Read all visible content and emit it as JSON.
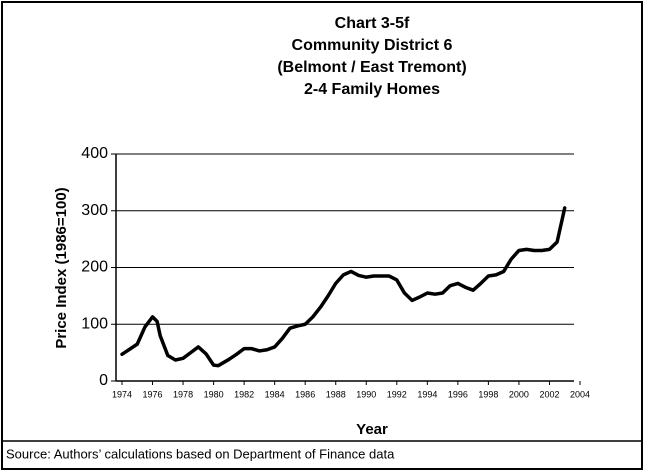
{
  "chart_data": {
    "type": "line",
    "title": [
      "Chart 3-5f",
      "Community District 6",
      "(Belmont / East Tremont)",
      "2-4 Family Homes"
    ],
    "x_label": "Year",
    "y_label": "Price Index (1986=100)",
    "source": "Source: Authors’ calculations based on Department of Finance data",
    "x": [
      1974,
      1975,
      1975.5,
      1976,
      1976.3,
      1976.5,
      1977,
      1977.5,
      1978,
      1978.5,
      1979,
      1979.5,
      1980,
      1980.3,
      1981,
      1981.5,
      1982,
      1982.5,
      1983,
      1983.5,
      1984,
      1984.5,
      1985,
      1985.5,
      1986,
      1986.5,
      1987,
      1987.5,
      1988,
      1988.5,
      1989,
      1989.5,
      1990,
      1990.5,
      1991,
      1991.5,
      1992,
      1992.5,
      1993,
      1993.5,
      1994,
      1994.5,
      1995,
      1995.5,
      1996,
      1996.5,
      1997,
      1997.5,
      1998,
      1998.5,
      1999,
      1999.5,
      2000,
      2000.5,
      2001,
      2001.5,
      2002,
      2002.5,
      2003
    ],
    "series": [
      {
        "name": "Price Index",
        "color": "#000000",
        "values": [
          47,
          65,
          95,
          113,
          105,
          80,
          45,
          37,
          40,
          50,
          60,
          48,
          28,
          27,
          38,
          47,
          57,
          57,
          53,
          55,
          60,
          75,
          93,
          97,
          100,
          113,
          130,
          150,
          172,
          187,
          193,
          186,
          183,
          185,
          185,
          185,
          178,
          155,
          142,
          148,
          155,
          153,
          155,
          168,
          172,
          165,
          160,
          172,
          185,
          187,
          193,
          215,
          230,
          232,
          230,
          230,
          232,
          245,
          305
        ]
      }
    ],
    "xlim": [
      1974,
      2004
    ],
    "xticks": [
      1974,
      1976,
      1978,
      1980,
      1982,
      1984,
      1986,
      1988,
      1990,
      1992,
      1994,
      1996,
      1998,
      2000,
      2002,
      2004
    ],
    "ylim": [
      0,
      400
    ],
    "yticks": [
      0,
      100,
      200,
      300,
      400
    ],
    "grid": true
  }
}
